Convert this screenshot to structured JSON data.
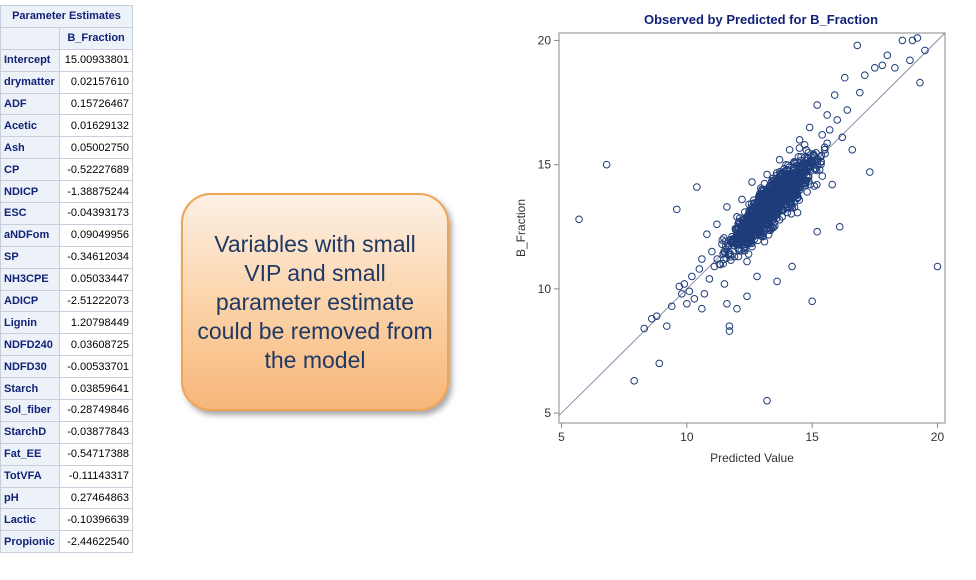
{
  "table": {
    "title": "Parameter Estimates",
    "column_header": "B_Fraction",
    "rows": [
      {
        "name": "Intercept",
        "value": "15.00933801"
      },
      {
        "name": "drymatter",
        "value": "0.02157610"
      },
      {
        "name": "ADF",
        "value": "0.15726467"
      },
      {
        "name": "Acetic",
        "value": "0.01629132"
      },
      {
        "name": "Ash",
        "value": "0.05002750"
      },
      {
        "name": "CP",
        "value": "-0.52227689"
      },
      {
        "name": "NDICP",
        "value": "-1.38875244"
      },
      {
        "name": "ESC",
        "value": "-0.04393173"
      },
      {
        "name": "aNDFom",
        "value": "0.09049956"
      },
      {
        "name": "SP",
        "value": "-0.34612034"
      },
      {
        "name": "NH3CPE",
        "value": "0.05033447"
      },
      {
        "name": "ADICP",
        "value": "-2.51222073"
      },
      {
        "name": "Lignin",
        "value": "1.20798449"
      },
      {
        "name": "NDFD240",
        "value": "0.03608725"
      },
      {
        "name": "NDFD30",
        "value": "-0.00533701"
      },
      {
        "name": "Starch",
        "value": "0.03859641"
      },
      {
        "name": "Sol_fiber",
        "value": "-0.28749846"
      },
      {
        "name": "StarchD",
        "value": "-0.03877843"
      },
      {
        "name": "Fat_EE",
        "value": "-0.54717388"
      },
      {
        "name": "TotVFA",
        "value": "-0.11143317"
      },
      {
        "name": "pH",
        "value": "0.27464863"
      },
      {
        "name": "Lactic",
        "value": "-0.10396639"
      },
      {
        "name": "Propionic",
        "value": "-2.44622540"
      }
    ]
  },
  "callout": {
    "text": "Variables with small VIP and small parameter estimate could be removed from the model"
  },
  "colors": {
    "marker": "#1f3d7a",
    "header_bg": "#edf2f9",
    "header_text": "#112277",
    "callout_border": "#f0a355"
  },
  "chart_data": {
    "type": "scatter",
    "title": "Observed by Predicted for B_Fraction",
    "xlabel": "Predicted Value",
    "ylabel": "B_Fraction",
    "xlim": [
      4.9,
      20.3
    ],
    "ylim": [
      4.6,
      20.3
    ],
    "xticks": [
      5,
      10,
      15,
      20
    ],
    "yticks": [
      5,
      10,
      15,
      20
    ],
    "reference_line": "y = x",
    "marker": "open-circle",
    "points": [
      [
        5.7,
        12.8
      ],
      [
        6.8,
        15.0
      ],
      [
        7.9,
        6.3
      ],
      [
        8.3,
        8.4
      ],
      [
        8.6,
        8.8
      ],
      [
        8.8,
        8.9
      ],
      [
        8.9,
        7.0
      ],
      [
        9.2,
        8.5
      ],
      [
        9.4,
        9.3
      ],
      [
        9.6,
        13.2
      ],
      [
        9.7,
        10.1
      ],
      [
        9.8,
        9.8
      ],
      [
        9.9,
        10.2
      ],
      [
        10.0,
        9.4
      ],
      [
        10.1,
        9.9
      ],
      [
        10.2,
        10.5
      ],
      [
        10.3,
        9.6
      ],
      [
        10.4,
        14.1
      ],
      [
        10.5,
        10.8
      ],
      [
        10.6,
        11.2
      ],
      [
        10.7,
        9.8
      ],
      [
        10.8,
        12.2
      ],
      [
        10.9,
        10.4
      ],
      [
        11.0,
        11.5
      ],
      [
        11.1,
        10.9
      ],
      [
        11.2,
        12.6
      ],
      [
        11.3,
        11.0
      ],
      [
        11.4,
        11.8
      ],
      [
        11.5,
        10.2
      ],
      [
        11.6,
        13.3
      ],
      [
        11.7,
        8.5
      ],
      [
        11.7,
        8.3
      ],
      [
        11.8,
        12.1
      ],
      [
        11.9,
        11.3
      ],
      [
        12.0,
        12.9
      ],
      [
        12.1,
        11.6
      ],
      [
        12.2,
        13.6
      ],
      [
        12.3,
        12.4
      ],
      [
        12.4,
        11.1
      ],
      [
        12.5,
        13.0
      ],
      [
        12.6,
        14.3
      ],
      [
        12.7,
        12.0
      ],
      [
        12.8,
        13.4
      ],
      [
        12.9,
        12.7
      ],
      [
        13.0,
        14.0
      ],
      [
        13.0,
        13.1
      ],
      [
        13.1,
        11.9
      ],
      [
        13.2,
        14.6
      ],
      [
        13.2,
        5.5
      ],
      [
        13.3,
        13.5
      ],
      [
        13.4,
        12.5
      ],
      [
        13.5,
        14.2
      ],
      [
        13.6,
        13.8
      ],
      [
        13.7,
        15.2
      ],
      [
        13.8,
        12.9
      ],
      [
        13.9,
        14.7
      ],
      [
        14.0,
        13.6
      ],
      [
        14.1,
        15.6
      ],
      [
        14.2,
        14.1
      ],
      [
        14.3,
        13.3
      ],
      [
        14.4,
        15.1
      ],
      [
        14.5,
        16.0
      ],
      [
        14.6,
        14.5
      ],
      [
        14.7,
        15.8
      ],
      [
        14.8,
        13.9
      ],
      [
        14.9,
        16.5
      ],
      [
        15.0,
        9.5
      ],
      [
        15.1,
        15.3
      ],
      [
        15.2,
        17.4
      ],
      [
        15.3,
        14.8
      ],
      [
        15.4,
        16.2
      ],
      [
        15.5,
        15.7
      ],
      [
        15.6,
        17.0
      ],
      [
        15.7,
        16.4
      ],
      [
        15.8,
        14.2
      ],
      [
        15.9,
        17.8
      ],
      [
        16.0,
        16.8
      ],
      [
        16.2,
        16.1
      ],
      [
        16.3,
        18.5
      ],
      [
        16.4,
        17.2
      ],
      [
        16.6,
        15.6
      ],
      [
        16.8,
        19.8
      ],
      [
        16.9,
        17.9
      ],
      [
        17.1,
        18.6
      ],
      [
        17.3,
        14.7
      ],
      [
        17.5,
        18.9
      ],
      [
        17.8,
        19.0
      ],
      [
        18.0,
        19.4
      ],
      [
        18.3,
        18.9
      ],
      [
        18.6,
        20.0
      ],
      [
        18.9,
        19.2
      ],
      [
        19.0,
        20.0
      ],
      [
        19.2,
        20.1
      ],
      [
        19.3,
        18.3
      ],
      [
        19.5,
        19.6
      ],
      [
        20.0,
        10.9
      ],
      [
        12.8,
        10.5
      ],
      [
        12.4,
        9.7
      ],
      [
        11.6,
        9.4
      ],
      [
        14.2,
        10.9
      ],
      [
        15.2,
        12.3
      ],
      [
        13.6,
        10.3
      ],
      [
        16.1,
        12.5
      ],
      [
        12.0,
        9.2
      ],
      [
        10.6,
        9.2
      ],
      [
        13.4,
        12.9
      ],
      [
        13.9,
        13.9
      ],
      [
        12.9,
        12.2
      ],
      [
        14.4,
        14.0
      ],
      [
        12.3,
        12.8
      ],
      [
        13.1,
        12.6
      ],
      [
        13.7,
        14.3
      ],
      [
        12.6,
        11.7
      ],
      [
        14.1,
        14.6
      ],
      [
        12.2,
        12.3
      ],
      [
        13.3,
        13.2
      ],
      [
        12.7,
        12.9
      ],
      [
        14.0,
        13.8
      ],
      [
        12.1,
        11.8
      ],
      [
        13.5,
        13.4
      ]
    ]
  }
}
